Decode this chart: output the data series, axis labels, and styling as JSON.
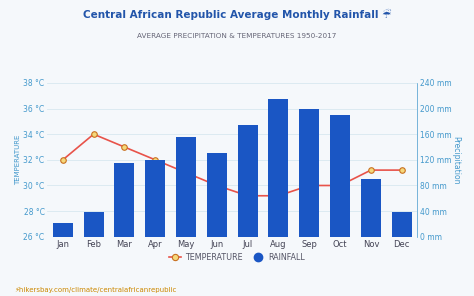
{
  "title": "Central African Republic Average Monthly Rainfall ☔",
  "subtitle": "AVERAGE PRECIPITATION & TEMPERATURES 1950-2017",
  "months": [
    "Jan",
    "Feb",
    "Mar",
    "Apr",
    "May",
    "Jun",
    "Jul",
    "Aug",
    "Sep",
    "Oct",
    "Nov",
    "Dec"
  ],
  "rainfall_mm": [
    22,
    38,
    115,
    120,
    155,
    130,
    175,
    215,
    200,
    190,
    90,
    38
  ],
  "temperature_c": [
    32,
    34,
    33,
    32,
    31,
    30,
    29.2,
    29.2,
    30,
    30,
    31.2,
    31.2
  ],
  "bar_color": "#1a56c4",
  "line_color": "#e8534a",
  "marker_face": "#f5d87a",
  "marker_edge": "#c87020",
  "bg_color": "#f5f8fb",
  "left_ylim": [
    26,
    38
  ],
  "left_yticks": [
    26,
    28,
    30,
    32,
    34,
    36,
    38
  ],
  "left_ytick_labels": [
    "26 °C",
    "28 °C",
    "30 °C",
    "32 °C",
    "34 °C",
    "36 °C",
    "38 °C"
  ],
  "right_ylim": [
    0,
    240
  ],
  "right_yticks": [
    0,
    40,
    80,
    120,
    160,
    200,
    240
  ],
  "right_ytick_labels": [
    "0 mm",
    "40 mm",
    "80 mm",
    "120 mm",
    "160 mm",
    "200 mm",
    "240 mm"
  ],
  "ylabel_left": "TEMPERATURE",
  "ylabel_right": "Precipitation",
  "footer": "⚡hikersbay.com/climate/centralafricanrepublic",
  "title_color": "#2255aa",
  "subtitle_color": "#666677",
  "axis_label_color": "#4499cc",
  "footer_color": "#cc8800",
  "grid_color": "#d8e8f0"
}
